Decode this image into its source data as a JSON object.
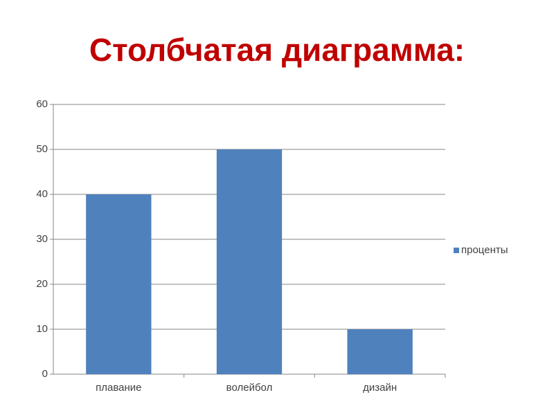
{
  "chart_data": {
    "type": "bar",
    "title": "Столбчатая диаграмма:",
    "categories": [
      "плавание",
      "волейбол",
      "дизайн"
    ],
    "series": [
      {
        "name": "проценты",
        "color": "#4f81bd",
        "values": [
          40,
          50,
          10
        ]
      }
    ],
    "ylim": [
      0,
      60
    ],
    "yticks": [
      0,
      10,
      20,
      30,
      40,
      50,
      60
    ],
    "grid": true,
    "legend": "right"
  }
}
